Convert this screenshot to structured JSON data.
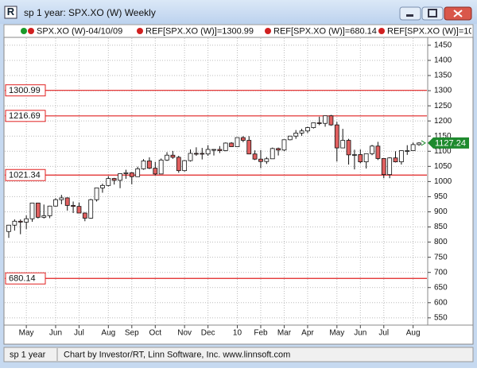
{
  "window": {
    "title": "sp 1 year: SPX.XO (W) Weekly",
    "status_left": "sp 1 year",
    "status_text": "Chart by Investor/RT, Linn Software, Inc. www.linnsoft.com"
  },
  "chart_data": {
    "type": "candlestick",
    "legend": [
      "SPX.XO (W)-04/10/09",
      "REF[SPX.XO (W)]=1300.99",
      "REF[SPX.XO (W)]=680.14",
      "REF[SPX.XO (W)]=10"
    ],
    "categories": [
      null,
      null,
      null,
      "May",
      null,
      null,
      null,
      null,
      "Jun",
      null,
      null,
      null,
      "Jul",
      null,
      null,
      null,
      null,
      "Aug",
      null,
      null,
      null,
      "Sep",
      null,
      null,
      null,
      "Oct",
      null,
      null,
      null,
      null,
      "Nov",
      null,
      null,
      null,
      "Dec",
      null,
      null,
      null,
      null,
      "10",
      null,
      null,
      null,
      "Feb",
      null,
      null,
      null,
      "Mar",
      null,
      null,
      null,
      "Apr",
      null,
      null,
      null,
      null,
      "May",
      null,
      null,
      null,
      "Jun",
      null,
      null,
      null,
      "Jul",
      null,
      null,
      null,
      null,
      "Aug",
      null
    ],
    "open": [
      835,
      856,
      869,
      866,
      877,
      929,
      882,
      887,
      919,
      940,
      946,
      921,
      918,
      896,
      879,
      940,
      979,
      987,
      1010,
      1004,
      1026,
      1029,
      1016,
      1042,
      1068,
      1044,
      1025,
      1071,
      1087,
      1080,
      1036,
      1069,
      1093,
      1093,
      1091,
      1104,
      1106,
      1102,
      1127,
      1115,
      1145,
      1136,
      1091,
      1074,
      1066,
      1075,
      1109,
      1104,
      1138,
      1150,
      1160,
      1167,
      1178,
      1194,
      1192,
      1217,
      1187,
      1111,
      1136,
      1088,
      1089,
      1065,
      1092,
      1117,
      1076,
      1023,
      1078,
      1065,
      1100,
      1102,
      1122
    ],
    "high": [
      857,
      875,
      875,
      888,
      930,
      930,
      924,
      920,
      945,
      956,
      948,
      934,
      931,
      898,
      943,
      979,
      993,
      1018,
      1012,
      1027,
      1039,
      1031,
      1049,
      1074,
      1080,
      1065,
      1076,
      1097,
      1101,
      1085,
      1071,
      1106,
      1113,
      1111,
      1120,
      1107,
      1117,
      1129,
      1130,
      1145,
      1150,
      1150,
      1103,
      1104,
      1081,
      1112,
      1112,
      1139,
      1151,
      1170,
      1174,
      1181,
      1195,
      1214,
      1217,
      1220,
      1197,
      1174,
      1141,
      1105,
      1106,
      1093,
      1121,
      1131,
      1076,
      1080,
      1100,
      1103,
      1120,
      1129,
      1130
    ],
    "low": [
      814,
      838,
      826,
      843,
      867,
      878,
      878,
      879,
      917,
      925,
      904,
      896,
      896,
      869,
      877,
      934,
      963,
      984,
      990,
      978,
      1009,
      991,
      1016,
      1039,
      1041,
      1020,
      1025,
      1068,
      1075,
      1029,
      1033,
      1066,
      1085,
      1073,
      1085,
      1086,
      1094,
      1100,
      1115,
      1114,
      1130,
      1090,
      1071,
      1044,
      1058,
      1075,
      1086,
      1100,
      1136,
      1141,
      1151,
      1160,
      1175,
      1186,
      1181,
      1184,
      1066,
      1110,
      1056,
      1040,
      1060,
      1043,
      1087,
      1071,
      1011,
      1011,
      1063,
      1056,
      1088,
      1101,
      1118
    ],
    "close": [
      856,
      869,
      866,
      877,
      929,
      882,
      887,
      919,
      940,
      946,
      921,
      918,
      896,
      879,
      940,
      979,
      987,
      1010,
      1004,
      1026,
      1029,
      1016,
      1042,
      1068,
      1044,
      1025,
      1071,
      1087,
      1080,
      1036,
      1069,
      1093,
      1091,
      1091,
      1106,
      1106,
      1102,
      1127,
      1115,
      1145,
      1136,
      1091,
      1074,
      1066,
      1075,
      1109,
      1104,
      1138,
      1150,
      1160,
      1167,
      1178,
      1194,
      1192,
      1217,
      1187,
      1111,
      1136,
      1088,
      1089,
      1065,
      1092,
      1117,
      1076,
      1023,
      1078,
      1065,
      1102,
      1102,
      1122,
      1127.24
    ],
    "up_color": "#ffffff",
    "down_color": "#e06060",
    "ref_lines": [
      1300.99,
      1216.69,
      1021.34,
      680.14
    ],
    "ref_color": "#e02020",
    "ylim": [
      526,
      1476
    ],
    "yticks": [
      550,
      600,
      650,
      700,
      750,
      800,
      850,
      900,
      950,
      1000,
      1050,
      1100,
      1150,
      1200,
      1250,
      1300,
      1350,
      1400,
      1450
    ],
    "grid": true
  }
}
